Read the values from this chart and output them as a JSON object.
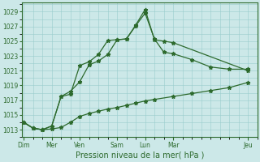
{
  "title": "Pression niveau de la mer( hPa )",
  "ylabel_ticks": [
    1013,
    1015,
    1017,
    1019,
    1021,
    1023,
    1025,
    1027,
    1029
  ],
  "ylim": [
    1012.5,
    1030.2
  ],
  "xlim": [
    -0.1,
    12.2
  ],
  "background_color": "#cce8e8",
  "grid_color": "#99cccc",
  "line_color": "#2d6a2d",
  "x_tick_labels": [
    "Dim",
    "Mer",
    "Ven",
    "Sam",
    "Lun",
    "Mar",
    "Jeu"
  ],
  "x_tick_positions": [
    0,
    1.5,
    3.0,
    5.0,
    6.5,
    8.0,
    12.0
  ],
  "series1_x": [
    0,
    0.5,
    1.0,
    1.5,
    2.0,
    2.5,
    3.0,
    3.5,
    4.0,
    4.5,
    5.0,
    5.5,
    6.0,
    6.5,
    7.0,
    8.0,
    9.0,
    10.0,
    11.0,
    12.0
  ],
  "series1_y": [
    1014.0,
    1013.2,
    1013.0,
    1013.1,
    1013.3,
    1014.0,
    1014.8,
    1015.2,
    1015.5,
    1015.8,
    1016.0,
    1016.3,
    1016.6,
    1016.9,
    1017.1,
    1017.5,
    1017.9,
    1018.3,
    1018.7,
    1019.4
  ],
  "series2_x": [
    0,
    0.5,
    1.0,
    1.5,
    2.0,
    2.5,
    3.0,
    3.5,
    4.0,
    4.5,
    5.0,
    5.5,
    6.0,
    6.5,
    7.0,
    7.5,
    8.0,
    9.0,
    10.0,
    11.0,
    12.0
  ],
  "series2_y": [
    1014.0,
    1013.2,
    1013.0,
    1013.5,
    1017.5,
    1017.8,
    1021.7,
    1022.2,
    1023.2,
    1025.1,
    1025.2,
    1025.3,
    1027.1,
    1028.8,
    1025.3,
    1023.5,
    1023.3,
    1022.5,
    1021.5,
    1021.2,
    1021.2
  ],
  "series3_x": [
    0,
    0.5,
    1.0,
    1.5,
    2.0,
    2.5,
    3.0,
    3.5,
    4.0,
    4.5,
    5.0,
    5.5,
    6.0,
    6.5,
    7.0,
    7.5,
    8.0,
    12.0
  ],
  "series3_y": [
    1014.0,
    1013.2,
    1013.0,
    1013.5,
    1017.5,
    1018.2,
    1019.5,
    1021.8,
    1022.3,
    1023.2,
    1025.2,
    1025.3,
    1027.2,
    1029.3,
    1025.2,
    1025.0,
    1024.8,
    1021.0
  ],
  "marker_size": 3.5,
  "line_width": 0.9,
  "font_size_ticks": 5.5,
  "font_size_xlabel": 7.0
}
